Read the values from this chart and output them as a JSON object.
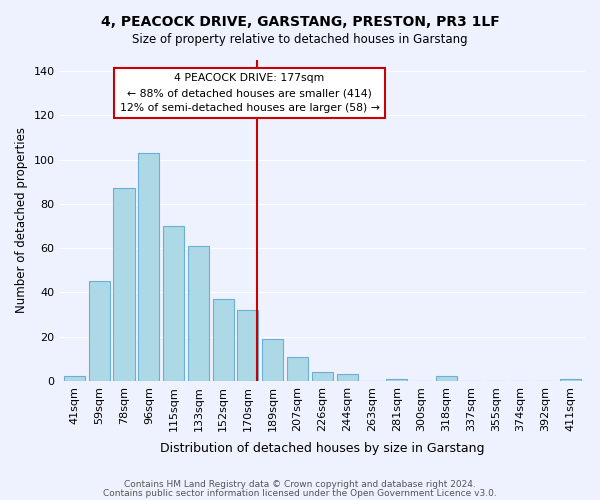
{
  "title": "4, PEACOCK DRIVE, GARSTANG, PRESTON, PR3 1LF",
  "subtitle": "Size of property relative to detached houses in Garstang",
  "xlabel": "Distribution of detached houses by size in Garstang",
  "ylabel": "Number of detached properties",
  "bar_labels": [
    "41sqm",
    "59sqm",
    "78sqm",
    "96sqm",
    "115sqm",
    "133sqm",
    "152sqm",
    "170sqm",
    "189sqm",
    "207sqm",
    "226sqm",
    "244sqm",
    "263sqm",
    "281sqm",
    "300sqm",
    "318sqm",
    "337sqm",
    "355sqm",
    "374sqm",
    "392sqm",
    "411sqm"
  ],
  "bar_values": [
    2,
    45,
    87,
    103,
    70,
    61,
    37,
    32,
    19,
    11,
    4,
    3,
    0,
    1,
    0,
    2,
    0,
    0,
    0,
    0,
    1
  ],
  "bar_color": "#add8e6",
  "bar_edge_color": "#6baed6",
  "ylim": [
    0,
    145
  ],
  "vline_color": "#cc0000",
  "annotation_title": "4 PEACOCK DRIVE: 177sqm",
  "annotation_line1": "← 88% of detached houses are smaller (414)",
  "annotation_line2": "12% of semi-detached houses are larger (58) →",
  "annotation_box_color": "#ffffff",
  "annotation_box_edge": "#cc0000",
  "footer1": "Contains HM Land Registry data © Crown copyright and database right 2024.",
  "footer2": "Contains public sector information licensed under the Open Government Licence v3.0.",
  "background_color": "#eef2ff"
}
